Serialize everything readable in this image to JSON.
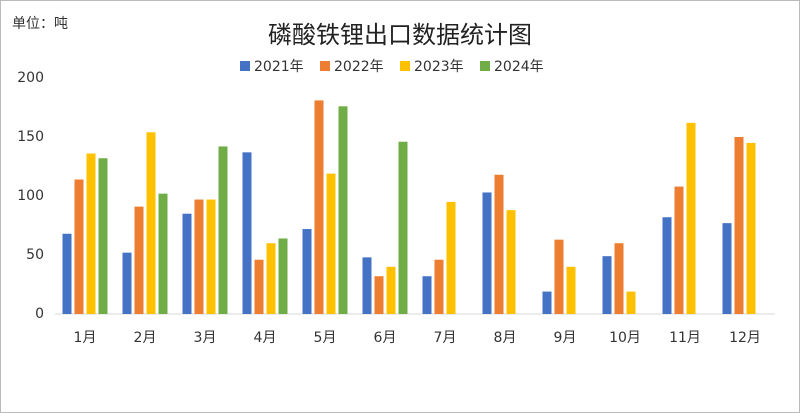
{
  "chart_data": {
    "type": "bar",
    "title": "磷酸铁锂出口数据统计图",
    "unit_label": "单位：吨",
    "categories": [
      "1月",
      "2月",
      "3月",
      "4月",
      "5月",
      "6月",
      "7月",
      "8月",
      "9月",
      "10月",
      "11月",
      "12月"
    ],
    "series": [
      {
        "name": "2021年",
        "color": "#4472c4",
        "values": [
          68,
          52,
          85,
          137,
          72,
          48,
          32,
          103,
          19,
          49,
          82,
          77
        ]
      },
      {
        "name": "2022年",
        "color": "#ed7d31",
        "values": [
          114,
          91,
          97,
          46,
          181,
          32,
          46,
          118,
          63,
          60,
          108,
          150
        ]
      },
      {
        "name": "2023年",
        "color": "#ffc000",
        "values": [
          136,
          154,
          97,
          60,
          119,
          40,
          95,
          88,
          40,
          19,
          162,
          145
        ]
      },
      {
        "name": "2024年",
        "color": "#70ad47",
        "values": [
          132,
          102,
          142,
          64,
          176,
          146,
          null,
          null,
          null,
          null,
          null,
          null
        ]
      }
    ],
    "ylim": [
      0,
      200
    ],
    "yticks": [
      0,
      50,
      100,
      150,
      200
    ],
    "grid": false
  }
}
